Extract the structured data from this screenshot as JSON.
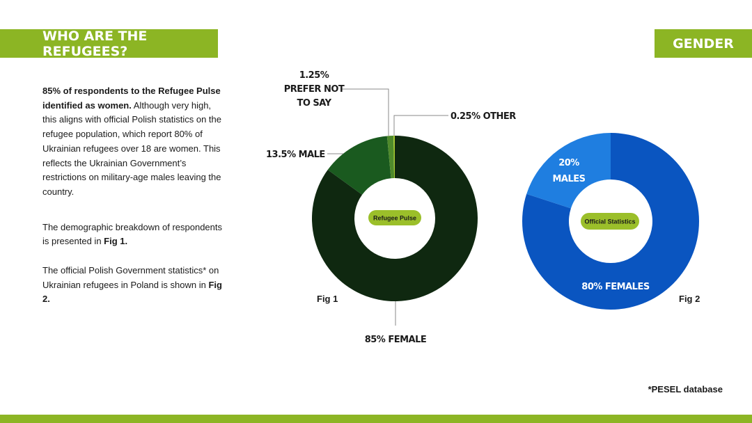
{
  "header": {
    "left_title": "WHO ARE THE REFUGEES?",
    "right_title": "GENDER"
  },
  "body": {
    "p1_bold": "85% of respondents to the Refugee Pulse identified as women.",
    "p1_rest": " Although very high, this aligns with official Polish statistics on the refugee population, which report 80% of Ukrainian refugees over 18 are women. This reflects the Ukrainian Government’s restrictions on military-age males leaving the country.",
    "p2_text": "The demographic breakdown of respondents is presented in ",
    "p2_bold": "Fig 1.",
    "p3_text": "The official Polish Government statistics* on Ukrainian refugees in Poland is shown in ",
    "p3_bold": "Fig 2."
  },
  "footnote": "*PESEL database",
  "colors": {
    "banner": "#8cb524",
    "fig1_female": "#0f2810",
    "fig1_male": "#1a5a1f",
    "fig1_prefer_not": "#4f8a2b",
    "fig1_other": "#a6c92c",
    "fig2_females": "#0a55c0",
    "fig2_males": "#1f7ee0",
    "pill": "#9bbf2a"
  },
  "chart_data": [
    {
      "type": "pie",
      "donut": true,
      "fig_label": "Fig 1",
      "center_label": "Refugee Pulse",
      "slices": [
        {
          "name": "FEMALE",
          "value": 85,
          "label": "85% FEMALE",
          "color_key": "fig1_female"
        },
        {
          "name": "MALE",
          "value": 13.5,
          "label": "13.5% MALE",
          "color_key": "fig1_male"
        },
        {
          "name": "PREFER NOT TO SAY",
          "value": 1.25,
          "label_lines": [
            "1.25%",
            "PREFER NOT",
            "TO SAY"
          ],
          "color_key": "fig1_prefer_not"
        },
        {
          "name": "OTHER",
          "value": 0.25,
          "label": "0.25% OTHER",
          "color_key": "fig1_other"
        }
      ]
    },
    {
      "type": "pie",
      "donut": true,
      "fig_label": "Fig 2",
      "center_label": "Official Statistics",
      "slices": [
        {
          "name": "FEMALES",
          "value": 80,
          "label": "80% FEMALES",
          "color_key": "fig2_females"
        },
        {
          "name": "MALES",
          "value": 20,
          "label_lines": [
            "20%",
            "MALES"
          ],
          "color_key": "fig2_males"
        }
      ]
    }
  ]
}
